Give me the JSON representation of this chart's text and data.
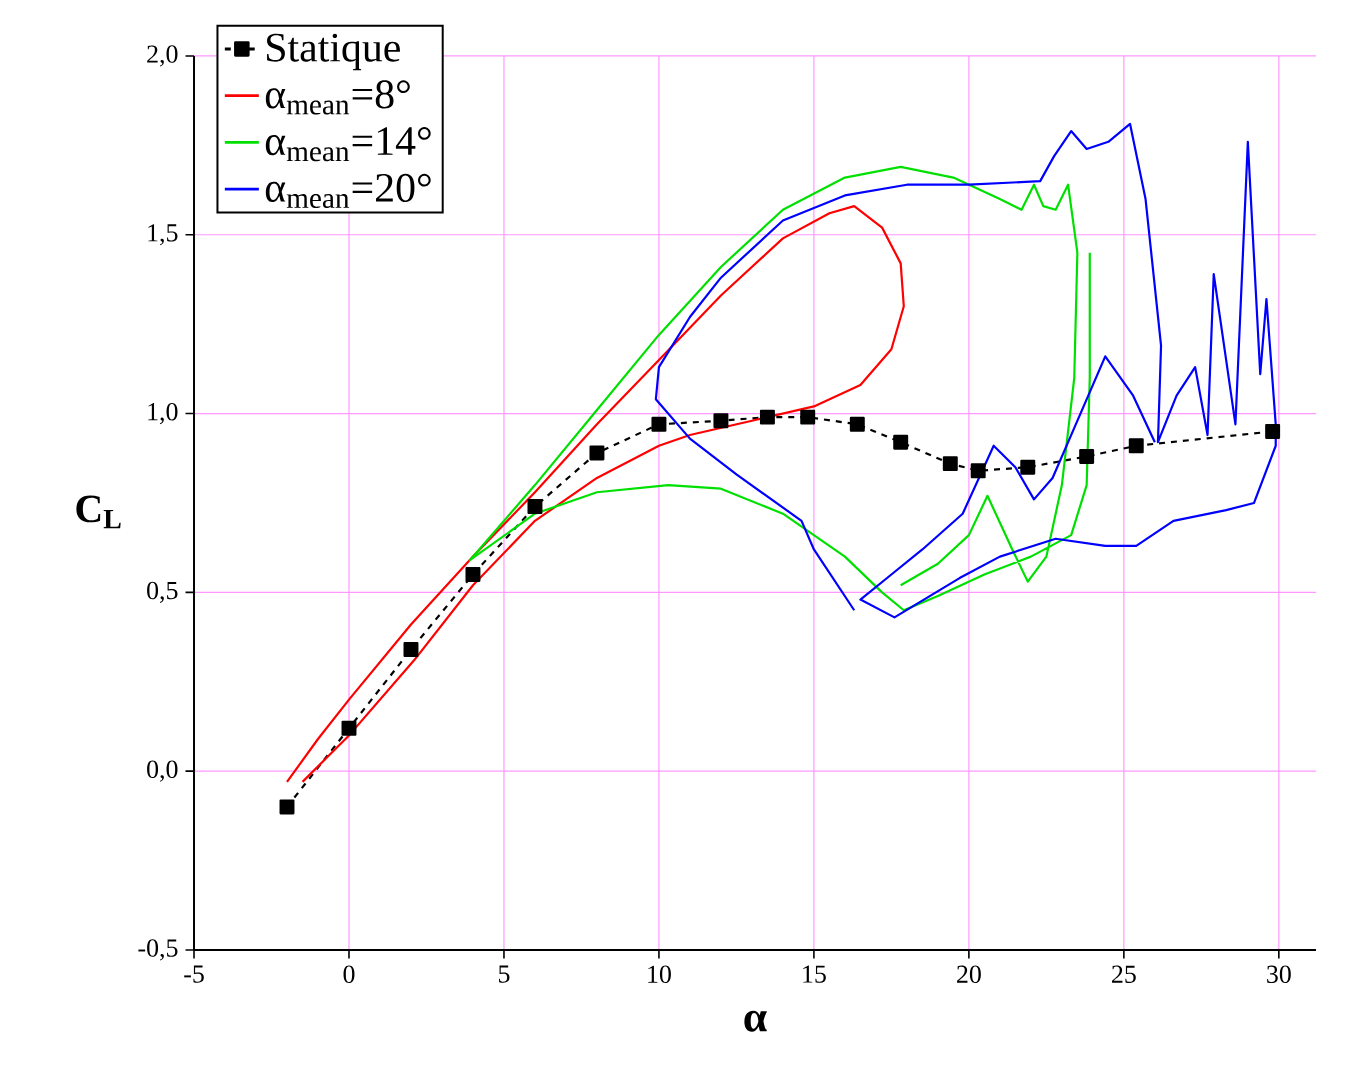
{
  "chart_data": {
    "type": "line",
    "xlabel": "α",
    "ylabel": "C$_{L}$",
    "xlim": [
      -5,
      31.2
    ],
    "ylim": [
      -0.5,
      2.0
    ],
    "xticks": [
      -5,
      0,
      5,
      10,
      15,
      20,
      25,
      30
    ],
    "yticks": [
      {
        "value": -0.5,
        "label": "-0,5"
      },
      {
        "value": 0,
        "label": "0,0"
      },
      {
        "value": 0.5,
        "label": "0,5"
      },
      {
        "value": 1.0,
        "label": "1,0"
      },
      {
        "value": 1.5,
        "label": "1,5"
      },
      {
        "value": 2.0,
        "label": "2,0"
      }
    ],
    "grid": true,
    "legend": "top left",
    "series": [
      {
        "name": "Statique",
        "color": "#000000",
        "marker": "square",
        "line_style": "dashed",
        "x": [
          -2,
          0,
          2,
          4,
          6,
          8,
          10,
          12,
          13.5,
          14.8,
          16.4,
          17.8,
          19.4,
          20.3,
          21.9,
          23.8,
          25.4,
          29.8
        ],
        "values": [
          -0.1,
          0.12,
          0.34,
          0.55,
          0.74,
          0.89,
          0.97,
          0.98,
          0.99,
          0.99,
          0.97,
          0.92,
          0.86,
          0.84,
          0.85,
          0.88,
          0.91,
          0.95
        ]
      },
      {
        "name": "α$_{mean}$=8°",
        "color": "#ff0000",
        "marker": "none",
        "line_style": "solid",
        "x": [
          -2,
          -1,
          0,
          2,
          4,
          6,
          8,
          10,
          12,
          14,
          15.5,
          16.3,
          17.2,
          17.8,
          17.9,
          17.5,
          16.5,
          15,
          13,
          11,
          10,
          8,
          6,
          4,
          2.1,
          0,
          -1.5
        ],
        "values": [
          -0.03,
          0.09,
          0.2,
          0.41,
          0.6,
          0.78,
          0.97,
          1.15,
          1.33,
          1.49,
          1.56,
          1.58,
          1.52,
          1.42,
          1.3,
          1.18,
          1.08,
          1.02,
          0.98,
          0.94,
          0.91,
          0.82,
          0.7,
          0.52,
          0.31,
          0.1,
          -0.03
        ]
      },
      {
        "name": "α$_{mean}$=14°",
        "color": "#00e000",
        "marker": "none",
        "line_style": "solid",
        "x": [
          23.9,
          23.9,
          23.8,
          23.3,
          22,
          20.5,
          19,
          17.9,
          17.2,
          16,
          14,
          12,
          10.3,
          8,
          6,
          3.9,
          6,
          8,
          10,
          12,
          14,
          16,
          17.8,
          19.5,
          21,
          21.7,
          22.1,
          22.4,
          22.8,
          23.2,
          23.5,
          23.4,
          23,
          22.5,
          21.9,
          21.4,
          20.6,
          20,
          19,
          17.8
        ],
        "values": [
          1.45,
          1.1,
          0.8,
          0.66,
          0.6,
          0.55,
          0.49,
          0.45,
          0.5,
          0.6,
          0.72,
          0.79,
          0.8,
          0.78,
          0.72,
          0.59,
          0.8,
          1.01,
          1.22,
          1.41,
          1.57,
          1.66,
          1.69,
          1.66,
          1.6,
          1.57,
          1.64,
          1.58,
          1.57,
          1.64,
          1.45,
          1.1,
          0.8,
          0.6,
          0.53,
          0.62,
          0.77,
          0.66,
          0.58,
          0.52
        ]
      },
      {
        "name": "α$_{mean}$=20°",
        "color": "#0000ff",
        "marker": "none",
        "line_style": "solid",
        "x": [
          16.3,
          15,
          14.6,
          12.5,
          11,
          9.9,
          10,
          11,
          12,
          14,
          16,
          18,
          20,
          22.3,
          22.75,
          23.3,
          23.8,
          24.5,
          25.2,
          25.7,
          26.2,
          26.1,
          26.7,
          27.3,
          27.7,
          27.9,
          28.6,
          29,
          29.4,
          29.6,
          29.9,
          29.9,
          29.2,
          28.3,
          26.6,
          25.4,
          24.4,
          22.8,
          21,
          19.7,
          17.6,
          16.5,
          17.5,
          18.5,
          19.8,
          20.8,
          21.5,
          22.1,
          22.7,
          23.6,
          24.4,
          25.3,
          26
        ],
        "values": [
          0.45,
          0.62,
          0.7,
          0.83,
          0.93,
          1.04,
          1.13,
          1.27,
          1.38,
          1.54,
          1.61,
          1.64,
          1.64,
          1.65,
          1.72,
          1.79,
          1.74,
          1.76,
          1.81,
          1.6,
          1.19,
          0.92,
          1.05,
          1.13,
          0.94,
          1.39,
          0.97,
          1.76,
          1.11,
          1.32,
          0.97,
          0.91,
          0.75,
          0.73,
          0.7,
          0.63,
          0.63,
          0.65,
          0.6,
          0.54,
          0.43,
          0.48,
          0.55,
          0.62,
          0.72,
          0.91,
          0.85,
          0.76,
          0.82,
          1.0,
          1.16,
          1.05,
          0.92
        ]
      }
    ]
  }
}
